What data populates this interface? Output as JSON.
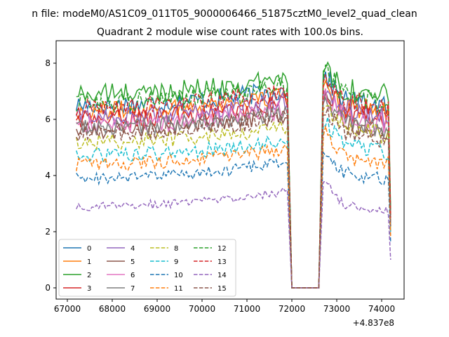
{
  "file_title": "n file: modeM0/AS1C09_011T05_9000006466_51875cztM0_level2_quad_clean",
  "chart_data": {
    "type": "line",
    "title": "Quadrant 2 module wise count rates with 100.0s bins.",
    "xlabel": "",
    "ylabel": "",
    "x_offset_label": "+4.837e8",
    "xlim": [
      66750,
      74500
    ],
    "ylim": [
      -0.4,
      8.8
    ],
    "x_ticks": [
      67000,
      68000,
      69000,
      70000,
      71000,
      72000,
      73000,
      74000
    ],
    "x_tick_labels": [
      "67000",
      "68000",
      "69000",
      "70000",
      "71000",
      "72000",
      "73000",
      "74000"
    ],
    "y_ticks": [
      0,
      2,
      4,
      6,
      8
    ],
    "y_tick_labels": [
      "0",
      "2",
      "4",
      "6",
      "8"
    ],
    "gap": {
      "drop_start": 71900,
      "zero_start": 72000,
      "zero_end": 72600,
      "rise_end": 72700
    },
    "segment1": {
      "x_start": 67200,
      "x_end": 71900,
      "step": 50
    },
    "segment2": {
      "x_start": 72700,
      "x_end": 74200,
      "step": 50
    },
    "legend_location": "lower-left",
    "series": [
      {
        "name": "0",
        "color": "#1f77b4",
        "dash": "solid",
        "level1": 6.5,
        "level2": 6.8,
        "end": 2.5
      },
      {
        "name": "1",
        "color": "#ff7f0e",
        "dash": "solid",
        "level1": 6.3,
        "level2": 6.6,
        "end": 2.4
      },
      {
        "name": "2",
        "color": "#2ca02c",
        "dash": "solid",
        "level1": 6.9,
        "level2": 7.2,
        "end": 2.8
      },
      {
        "name": "3",
        "color": "#d62728",
        "dash": "solid",
        "level1": 6.0,
        "level2": 6.4,
        "end": 2.3
      },
      {
        "name": "4",
        "color": "#9467bd",
        "dash": "solid",
        "level1": 6.1,
        "level2": 6.5,
        "end": 2.4
      },
      {
        "name": "5",
        "color": "#8c564b",
        "dash": "solid",
        "level1": 5.6,
        "level2": 6.0,
        "end": 2.2
      },
      {
        "name": "6",
        "color": "#e377c2",
        "dash": "solid",
        "level1": 5.8,
        "level2": 6.2,
        "end": 2.3
      },
      {
        "name": "7",
        "color": "#7f7f7f",
        "dash": "solid",
        "level1": 5.7,
        "level2": 6.0,
        "end": 2.2
      },
      {
        "name": "8",
        "color": "#bcbd22",
        "dash": "dashed",
        "level1": 5.2,
        "level2": 5.8,
        "end": 2.1
      },
      {
        "name": "9",
        "color": "#17becf",
        "dash": "dashed",
        "level1": 4.7,
        "level2": 5.2,
        "end": 2.0
      },
      {
        "name": "10",
        "color": "#1f77b4",
        "dash": "dashed",
        "level1": 3.9,
        "level2": 4.2,
        "end": 1.6
      },
      {
        "name": "11",
        "color": "#ff7f0e",
        "dash": "dashed",
        "level1": 4.4,
        "level2": 4.8,
        "end": 1.8
      },
      {
        "name": "12",
        "color": "#2ca02c",
        "dash": "dashed",
        "level1": 6.6,
        "level2": 7.0,
        "end": 2.6
      },
      {
        "name": "13",
        "color": "#d62728",
        "dash": "dashed",
        "level1": 6.4,
        "level2": 6.8,
        "end": 2.5
      },
      {
        "name": "14",
        "color": "#9467bd",
        "dash": "dashed",
        "level1": 2.9,
        "level2": 3.1,
        "end": 1.0
      },
      {
        "name": "15",
        "color": "#8c564b",
        "dash": "dashed",
        "level1": 5.5,
        "level2": 5.6,
        "end": 2.2
      }
    ]
  }
}
